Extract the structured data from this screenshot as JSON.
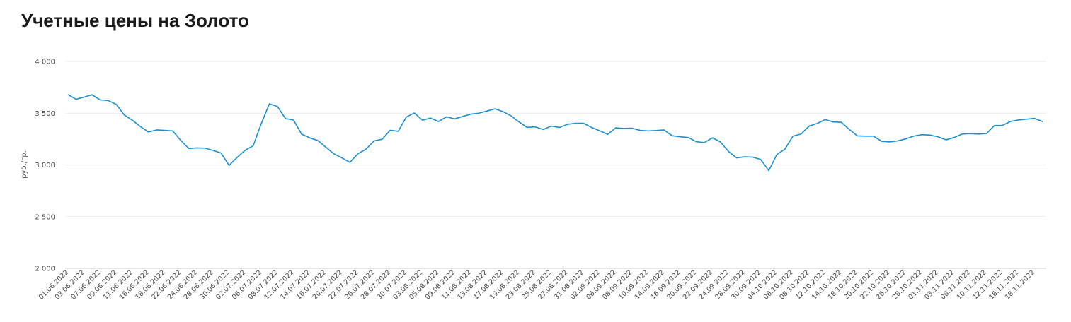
{
  "page": {
    "title": "Учетные цены на Золото"
  },
  "chart_data": {
    "type": "line",
    "title": "Учетные цены на Золото",
    "xlabel": "",
    "ylabel": "руб./гр.",
    "ylim": [
      2000,
      4000
    ],
    "yticks": [
      2000,
      2500,
      3000,
      3500,
      4000
    ],
    "ytick_labels": [
      "2 000",
      "2 500",
      "3 000",
      "3 500",
      "4 000"
    ],
    "grid": true,
    "legend": "none",
    "series_color": "#1a8fd0",
    "x_tick_labels": [
      "01.06.2022",
      "03.06.2022",
      "07.06.2022",
      "09.06.2022",
      "11.06.2022",
      "16.06.2022",
      "18.06.2022",
      "22.06.2022",
      "24.06.2022",
      "28.06.2022",
      "30.06.2022",
      "02.07.2022",
      "06.07.2022",
      "08.07.2022",
      "12.07.2022",
      "14.07.2022",
      "16.07.2022",
      "20.07.2022",
      "22.07.2022",
      "26.07.2022",
      "28.07.2022",
      "30.07.2022",
      "03.08.2022",
      "05.08.2022",
      "09.08.2022",
      "11.08.2022",
      "13.08.2022",
      "17.08.2022",
      "19.08.2022",
      "23.08.2022",
      "25.08.2022",
      "27.08.2022",
      "31.08.2022",
      "02.09.2022",
      "06.09.2022",
      "08.09.2022",
      "10.09.2022",
      "14.09.2022",
      "16.09.2022",
      "20.09.2022",
      "22.09.2022",
      "24.09.2022",
      "28.09.2022",
      "30.09.2022",
      "04.10.2022",
      "06.10.2022",
      "08.10.2022",
      "12.10.2022",
      "14.10.2022",
      "18.10.2022",
      "20.10.2022",
      "22.10.2022",
      "26.10.2022",
      "28.10.2022",
      "01.11.2022",
      "03.11.2022",
      "08.11.2022",
      "10.11.2022",
      "12.11.2022",
      "16.11.2022",
      "18.11.2022"
    ],
    "series": [
      {
        "values": [
          3680,
          3635,
          3655,
          3678,
          3628,
          3622,
          3585,
          3482,
          3432,
          3370,
          3318,
          3338,
          3334,
          3328,
          3238,
          3158,
          3164,
          3162,
          3140,
          3115,
          2995,
          3072,
          3142,
          3185,
          3400,
          3590,
          3565,
          3448,
          3434,
          3298,
          3262,
          3236,
          3172,
          3108,
          3068,
          3025,
          3108,
          3152,
          3232,
          3248,
          3335,
          3325,
          3462,
          3502,
          3432,
          3452,
          3420,
          3465,
          3445,
          3468,
          3490,
          3500,
          3520,
          3542,
          3515,
          3475,
          3415,
          3362,
          3368,
          3342,
          3375,
          3362,
          3392,
          3402,
          3402,
          3362,
          3330,
          3295,
          3358,
          3352,
          3355,
          3334,
          3328,
          3332,
          3338,
          3282,
          3272,
          3265,
          3225,
          3215,
          3262,
          3222,
          3130,
          3068,
          3078,
          3075,
          3052,
          2945,
          3100,
          3152,
          3278,
          3298,
          3375,
          3400,
          3438,
          3415,
          3412,
          3342,
          3280,
          3278,
          3278,
          3228,
          3222,
          3232,
          3252,
          3278,
          3292,
          3288,
          3272,
          3242,
          3265,
          3298,
          3302,
          3298,
          3302,
          3380,
          3382,
          3420,
          3434,
          3442,
          3450,
          3418
        ]
      }
    ]
  }
}
